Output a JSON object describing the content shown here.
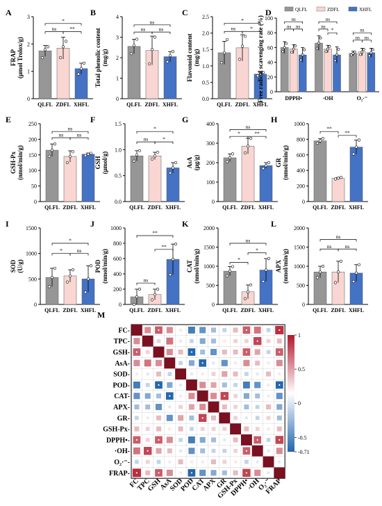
{
  "colors": {
    "QLFL": "#969696",
    "ZDFL": "#f9d6d2",
    "XHFL": "#4472c4",
    "pos": "#b2182b",
    "neg": "#2166ac"
  },
  "groups": [
    "QLFL",
    "ZDFL",
    "XHFL"
  ],
  "panels": [
    {
      "id": "A",
      "ylabel": "FRAP",
      "ylabel2": "(μmol Trolox/g)",
      "ticks": [
        "0",
        "1",
        "2",
        "3"
      ],
      "ymax": 3,
      "values": [
        1.75,
        1.85,
        1.1
      ],
      "err": [
        0.2,
        0.4,
        0.2
      ],
      "points": [
        [
          1.5,
          1.8,
          1.9
        ],
        [
          1.5,
          1.9,
          2.1
        ],
        [
          0.9,
          1.1,
          1.3
        ]
      ],
      "sig": [
        {
          "a": 0,
          "b": 2,
          "label": "*",
          "y": 2.75
        },
        {
          "a": 0,
          "b": 1,
          "label": "ns",
          "y": 2.45
        },
        {
          "a": 1,
          "b": 2,
          "label": "**",
          "y": 2.45
        }
      ]
    },
    {
      "id": "B",
      "ylabel": "Total phenolic content",
      "ylabel2": "(mg/g)",
      "ticks": [
        "0",
        "1",
        "2",
        "3",
        "4"
      ],
      "ymax": 4,
      "values": [
        2.55,
        2.35,
        2.05
      ],
      "err": [
        0.35,
        0.7,
        0.25
      ],
      "points": [
        [
          2.2,
          2.6,
          2.9
        ],
        [
          1.7,
          2.4,
          3.0
        ],
        [
          1.8,
          2.1,
          2.3
        ]
      ],
      "sig": [
        {
          "a": 0,
          "b": 2,
          "label": "ns",
          "y": 3.6
        },
        {
          "a": 0,
          "b": 1,
          "label": "ns",
          "y": 3.25
        },
        {
          "a": 1,
          "b": 2,
          "label": "ns",
          "y": 3.25
        }
      ]
    },
    {
      "id": "C",
      "ylabel": "Flavonoid content",
      "ylabel2": "(mg/g)",
      "ticks": [
        "0.0",
        "0.5",
        "1.0",
        "1.5",
        "2.0",
        "2.5"
      ],
      "ymax": 2.5,
      "values": [
        1.4,
        1.55,
        0.75
      ],
      "err": [
        0.35,
        0.4,
        0.05
      ],
      "points": [
        [
          1.1,
          1.4,
          1.8
        ],
        [
          1.2,
          1.6,
          1.9
        ],
        [
          0.7,
          0.75,
          0.8
        ]
      ],
      "sig": [
        {
          "a": 0,
          "b": 2,
          "label": "*",
          "y": 2.3
        },
        {
          "a": 0,
          "b": 1,
          "label": "ns",
          "y": 2.05
        },
        {
          "a": 1,
          "b": 2,
          "label": "*",
          "y": 2.05
        }
      ]
    },
    {
      "id": "E",
      "ylabel": "GSH-Px",
      "ylabel2": "(nmol/min/g)",
      "ticks": [
        "0",
        "50",
        "100",
        "150",
        "200",
        "250"
      ],
      "ymax": 250,
      "values": [
        165,
        145,
        152
      ],
      "err": [
        20,
        18,
        4
      ],
      "points": [
        [
          145,
          165,
          185
        ],
        [
          125,
          145,
          160
        ],
        [
          148,
          152,
          155
        ]
      ],
      "sig": [
        {
          "a": 0,
          "b": 2,
          "label": "ns",
          "y": 225
        },
        {
          "a": 0,
          "b": 1,
          "label": "ns",
          "y": 205
        },
        {
          "a": 1,
          "b": 2,
          "label": "ns",
          "y": 205
        }
      ]
    },
    {
      "id": "F",
      "ylabel": "GSH",
      "ylabel2": "(μmol/g)",
      "ticks": [
        "0.0",
        "0.5",
        "1.0",
        "1.5"
      ],
      "ymax": 1.5,
      "values": [
        0.88,
        0.88,
        0.65
      ],
      "err": [
        0.1,
        0.07,
        0.1
      ],
      "points": [
        [
          0.78,
          0.9,
          0.98
        ],
        [
          0.82,
          0.88,
          0.95
        ],
        [
          0.55,
          0.65,
          0.75
        ]
      ],
      "sig": [
        {
          "a": 0,
          "b": 2,
          "label": "*",
          "y": 1.35
        },
        {
          "a": 0,
          "b": 1,
          "label": "ns",
          "y": 1.15
        },
        {
          "a": 1,
          "b": 2,
          "label": "*",
          "y": 1.15
        }
      ]
    },
    {
      "id": "G",
      "ylabel": "AsA",
      "ylabel2": "(μg/g)",
      "ticks": [
        "0",
        "100",
        "200",
        "300",
        "400"
      ],
      "ymax": 400,
      "values": [
        225,
        285,
        185
      ],
      "err": [
        20,
        40,
        15
      ],
      "points": [
        [
          205,
          225,
          245
        ],
        [
          250,
          285,
          325
        ],
        [
          170,
          185,
          200
        ]
      ],
      "sig": [
        {
          "a": 0,
          "b": 2,
          "label": "ns",
          "y": 370
        },
        {
          "a": 0,
          "b": 1,
          "label": "*",
          "y": 335
        },
        {
          "a": 1,
          "b": 2,
          "label": "**",
          "y": 335
        }
      ]
    },
    {
      "id": "H",
      "ylabel": "GR",
      "ylabel2": "(nmol/min/g)",
      "ticks": [
        "0",
        "200",
        "400",
        "600",
        "800",
        "1000"
      ],
      "ymax": 1000,
      "values": [
        780,
        300,
        700
      ],
      "err": [
        30,
        10,
        90
      ],
      "points": [
        [
          750,
          780,
          810
        ],
        [
          290,
          300,
          310
        ],
        [
          610,
          700,
          790
        ]
      ],
      "sig": [
        {
          "a": 0,
          "b": 1,
          "label": "**",
          "y": 900
        },
        {
          "a": 1,
          "b": 2,
          "label": "**",
          "y": 850
        }
      ]
    },
    {
      "id": "I",
      "ylabel": "SOD",
      "ylabel2": "(U/g)",
      "ticks": [
        "0",
        "500",
        "1000",
        "1500"
      ],
      "ymax": 1500,
      "values": [
        530,
        560,
        500
      ],
      "err": [
        180,
        120,
        260
      ],
      "points": [
        [
          350,
          530,
          710
        ],
        [
          440,
          560,
          680
        ],
        [
          240,
          500,
          760
        ]
      ],
      "sig": [
        {
          "a": 0,
          "b": 2,
          "label": "*",
          "y": 1200
        },
        {
          "a": 0,
          "b": 1,
          "label": "*",
          "y": 1000
        },
        {
          "a": 1,
          "b": 2,
          "label": "ns",
          "y": 1000
        }
      ]
    },
    {
      "id": "J",
      "ylabel": "POD",
      "ylabel2": "(nmol/min/g)",
      "ticks": [
        "0",
        "200",
        "400",
        "600",
        "800",
        "1000"
      ],
      "ymax": 1000,
      "values": [
        100,
        130,
        590
      ],
      "err": [
        100,
        70,
        200
      ],
      "points": [
        [
          0,
          100,
          200
        ],
        [
          60,
          130,
          200
        ],
        [
          390,
          590,
          790
        ]
      ],
      "sig": [
        {
          "a": 0,
          "b": 2,
          "label": "**",
          "y": 900
        },
        {
          "a": 0,
          "b": 1,
          "label": "ns",
          "y": 280
        },
        {
          "a": 1,
          "b": 2,
          "label": "**",
          "y": 720
        }
      ]
    },
    {
      "id": "K",
      "ylabel": "CAT",
      "ylabel2": "(nmol/min/g)",
      "ticks": [
        "0",
        "500",
        "1000",
        "1500",
        "2000"
      ],
      "ymax": 2000,
      "values": [
        870,
        330,
        900
      ],
      "err": [
        120,
        180,
        300
      ],
      "points": [
        [
          750,
          870,
          990
        ],
        [
          150,
          330,
          510
        ],
        [
          600,
          900,
          1200
        ]
      ],
      "sig": [
        {
          "a": 0,
          "b": 2,
          "label": "ns",
          "y": 1600
        },
        {
          "a": 0,
          "b": 1,
          "label": "*",
          "y": 1100
        },
        {
          "a": 1,
          "b": 2,
          "label": "*",
          "y": 1350
        }
      ]
    },
    {
      "id": "L",
      "ylabel": "APX",
      "ylabel2": "(nmol/min/g)",
      "ticks": [
        "0",
        "500",
        "1000",
        "1500",
        "2000"
      ],
      "ymax": 2000,
      "values": [
        850,
        850,
        820
      ],
      "err": [
        150,
        280,
        220
      ],
      "points": [
        [
          700,
          850,
          1000
        ],
        [
          570,
          850,
          1130
        ],
        [
          600,
          820,
          1040
        ]
      ],
      "sig": [
        {
          "a": 0,
          "b": 2,
          "label": "ns",
          "y": 1700
        },
        {
          "a": 0,
          "b": 1,
          "label": "ns",
          "y": 1450
        },
        {
          "a": 1,
          "b": 2,
          "label": "ns",
          "y": 1450
        }
      ]
    }
  ],
  "panelD": {
    "id": "D",
    "ylabel": "Free radical scavenging rate (%)",
    "ticks": [
      "0",
      "20",
      "40",
      "60",
      "80",
      "100"
    ],
    "categories": [
      "DPPH•",
      "·OH",
      "O₂·⁻"
    ],
    "series": [
      {
        "name": "QLFL",
        "values": [
          60,
          66,
          52
        ],
        "err": [
          8,
          10,
          3
        ]
      },
      {
        "name": "ZDFL",
        "values": [
          58,
          58,
          54
        ],
        "err": [
          6,
          5,
          5
        ]
      },
      {
        "name": "XHFL",
        "values": [
          50,
          50,
          53
        ],
        "err": [
          10,
          11,
          6
        ]
      }
    ],
    "sig": [
      {
        "cat": 0,
        "a": 0,
        "b": 2,
        "label": "ns",
        "y": 95
      },
      {
        "cat": 0,
        "a": 0,
        "b": 1,
        "label": "ns",
        "y": 85
      },
      {
        "cat": 0,
        "a": 1,
        "b": 2,
        "label": "ns",
        "y": 85
      },
      {
        "cat": 1,
        "a": 0,
        "b": 2,
        "label": "ns",
        "y": 95
      },
      {
        "cat": 1,
        "a": 0,
        "b": 1,
        "label": "ns",
        "y": 85
      },
      {
        "cat": 1,
        "a": 1,
        "b": 2,
        "label": "*",
        "y": 80
      },
      {
        "cat": 2,
        "a": 0,
        "b": 2,
        "label": "ns",
        "y": 80
      },
      {
        "cat": 2,
        "a": 0,
        "b": 1,
        "label": "ns",
        "y": 70
      },
      {
        "cat": 2,
        "a": 1,
        "b": 2,
        "label": "ns",
        "y": 70
      }
    ]
  },
  "heatmap": {
    "id": "M",
    "labels": [
      "FC",
      "TPC",
      "GSH",
      "AsA",
      "SOD",
      "POD",
      "CAT",
      "APX",
      "GR",
      "GSH-Px",
      "DPPH•",
      "·OH",
      "O₂·⁻",
      "FRAP"
    ],
    "colorbar_ticks": [
      "1",
      "0.5",
      "0",
      "-0.5",
      "-0.71"
    ],
    "matrix": [
      [
        1,
        0.5,
        0.7,
        0.5,
        0.1,
        -0.6,
        -0.5,
        -0.3,
        -0.2,
        0.3,
        0.7,
        0.6,
        -0.2,
        0.9
      ],
      [
        0.5,
        1,
        0.2,
        0.6,
        -0.1,
        -0.2,
        -0.4,
        -0.3,
        0.1,
        0.2,
        0.2,
        0.8,
        0.2,
        0.3
      ],
      [
        0.7,
        0.2,
        1,
        0.5,
        0.3,
        -0.7,
        -0.3,
        -0.5,
        0.3,
        0.3,
        0.7,
        0.4,
        -0.2,
        0.7
      ],
      [
        0.5,
        0.6,
        0.5,
        1,
        -0.2,
        -0.4,
        -0.7,
        -0.1,
        -0.5,
        0.1,
        0.5,
        0.3,
        0.1,
        0.5
      ],
      [
        0.1,
        -0.1,
        0.3,
        -0.2,
        1,
        -0.1,
        0.1,
        0.2,
        0.4,
        0.3,
        -0.2,
        -0.1,
        0.3,
        0.1
      ],
      [
        -0.6,
        -0.2,
        -0.7,
        -0.4,
        -0.1,
        1,
        0.5,
        0.4,
        -0.3,
        -0.2,
        -0.6,
        -0.5,
        0.1,
        -0.7
      ],
      [
        -0.5,
        -0.4,
        -0.3,
        -0.7,
        0.1,
        0.5,
        1,
        0.5,
        0.8,
        0.2,
        -0.4,
        -0.3,
        0.1,
        -0.5
      ],
      [
        -0.3,
        -0.3,
        -0.5,
        -0.1,
        0.2,
        0.4,
        0.5,
        1,
        0.3,
        0.2,
        -0.3,
        -0.2,
        0.3,
        -0.4
      ],
      [
        -0.2,
        0.1,
        0.3,
        -0.5,
        0.4,
        -0.3,
        0.8,
        0.3,
        1,
        0.2,
        -0.1,
        -0.2,
        0.2,
        -0.3
      ],
      [
        0.3,
        0.2,
        0.3,
        0.1,
        0.3,
        -0.2,
        0.2,
        0.2,
        0.2,
        1,
        0.3,
        0.2,
        0.1,
        0.3
      ],
      [
        0.7,
        0.2,
        0.7,
        0.5,
        -0.2,
        -0.6,
        -0.4,
        -0.3,
        -0.1,
        0.3,
        1,
        0.7,
        -0.2,
        0.8
      ],
      [
        0.6,
        0.8,
        0.4,
        0.3,
        -0.1,
        -0.5,
        -0.3,
        -0.2,
        -0.2,
        0.2,
        0.7,
        1,
        -0.1,
        0.5
      ],
      [
        -0.2,
        0.2,
        -0.2,
        0.1,
        0.3,
        0.1,
        0.1,
        0.3,
        0.2,
        0.1,
        -0.2,
        -0.1,
        1,
        -0.1
      ],
      [
        0.9,
        0.3,
        0.7,
        0.5,
        0.1,
        -0.7,
        -0.5,
        -0.4,
        -0.3,
        0.3,
        0.8,
        0.5,
        -0.1,
        1
      ]
    ]
  }
}
